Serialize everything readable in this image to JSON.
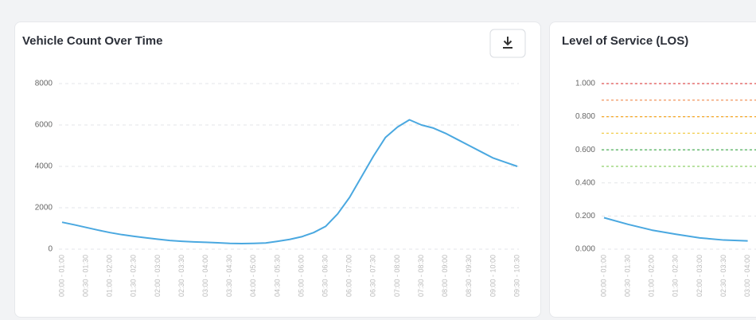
{
  "chart_data": [
    {
      "type": "line",
      "title": "Vehicle Count Over Time",
      "categories": [
        "00:00 - 01:00",
        null,
        "00:30 - 01:30",
        null,
        "01:00 - 02:00",
        null,
        "01:30 - 02:30",
        null,
        "02:00 - 03:00",
        null,
        "02:30 - 03:30",
        null,
        "03:00 - 04:00",
        null,
        "03:30 - 04:30",
        null,
        "04:00 - 05:00",
        null,
        "04:30 - 05:30",
        null,
        "05:00 - 06:00",
        null,
        "05:30 - 06:30",
        null,
        "06:00 - 07:00",
        null,
        "06:30 - 07:30",
        null,
        "07:00 - 08:00",
        null,
        "07:30 - 08:30",
        null,
        "08:00 - 09:00",
        null,
        "08:30 - 09:30",
        null,
        "09:00 - 10:00",
        null,
        "09:30 - 10:30"
      ],
      "values": [
        1300,
        1180,
        1050,
        920,
        800,
        700,
        620,
        550,
        480,
        420,
        380,
        350,
        330,
        310,
        280,
        270,
        280,
        300,
        380,
        470,
        600,
        800,
        1100,
        1700,
        2500,
        3500,
        4500,
        5400,
        5900,
        6250,
        6000,
        5850,
        5600,
        5300,
        5000,
        4700,
        4400,
        4200,
        4000
      ],
      "color": "#4aa8e0",
      "ylim": [
        0,
        8000
      ],
      "yticks": [
        0,
        2000,
        4000,
        6000,
        8000
      ],
      "grid": true
    },
    {
      "type": "line",
      "title": "Level of Service (LOS)",
      "categories": [
        "00:00 - 01:00",
        "00:30 - 01:30",
        "01:00 - 02:00",
        "01:30 - 02:30",
        "02:00 - 03:00",
        "02:30 - 03:30",
        "03:00 - 04:00"
      ],
      "values": [
        0.19,
        0.15,
        0.115,
        0.09,
        0.068,
        0.055,
        0.05
      ],
      "color": "#4aa8e0",
      "ylim": [
        0,
        1
      ],
      "yticks": [
        {
          "value": 0,
          "label": "0.000"
        },
        {
          "value": 0.2,
          "label": "0.200"
        },
        {
          "value": 0.4,
          "label": "0.400"
        },
        {
          "value": 0.6,
          "label": "0.600"
        },
        {
          "value": 0.8,
          "label": "0.800"
        },
        {
          "value": 1,
          "label": "1.000"
        }
      ],
      "grid": true,
      "thresholds": [
        {
          "value": 1,
          "color": "#e05252"
        },
        {
          "value": 0.9,
          "color": "#f08a4b"
        },
        {
          "value": 0.8,
          "color": "#f5a623"
        },
        {
          "value": 0.7,
          "color": "#f2cd4a"
        },
        {
          "value": 0.6,
          "color": "#3aa845"
        },
        {
          "value": 0.5,
          "color": "#8fd16a"
        }
      ]
    }
  ]
}
